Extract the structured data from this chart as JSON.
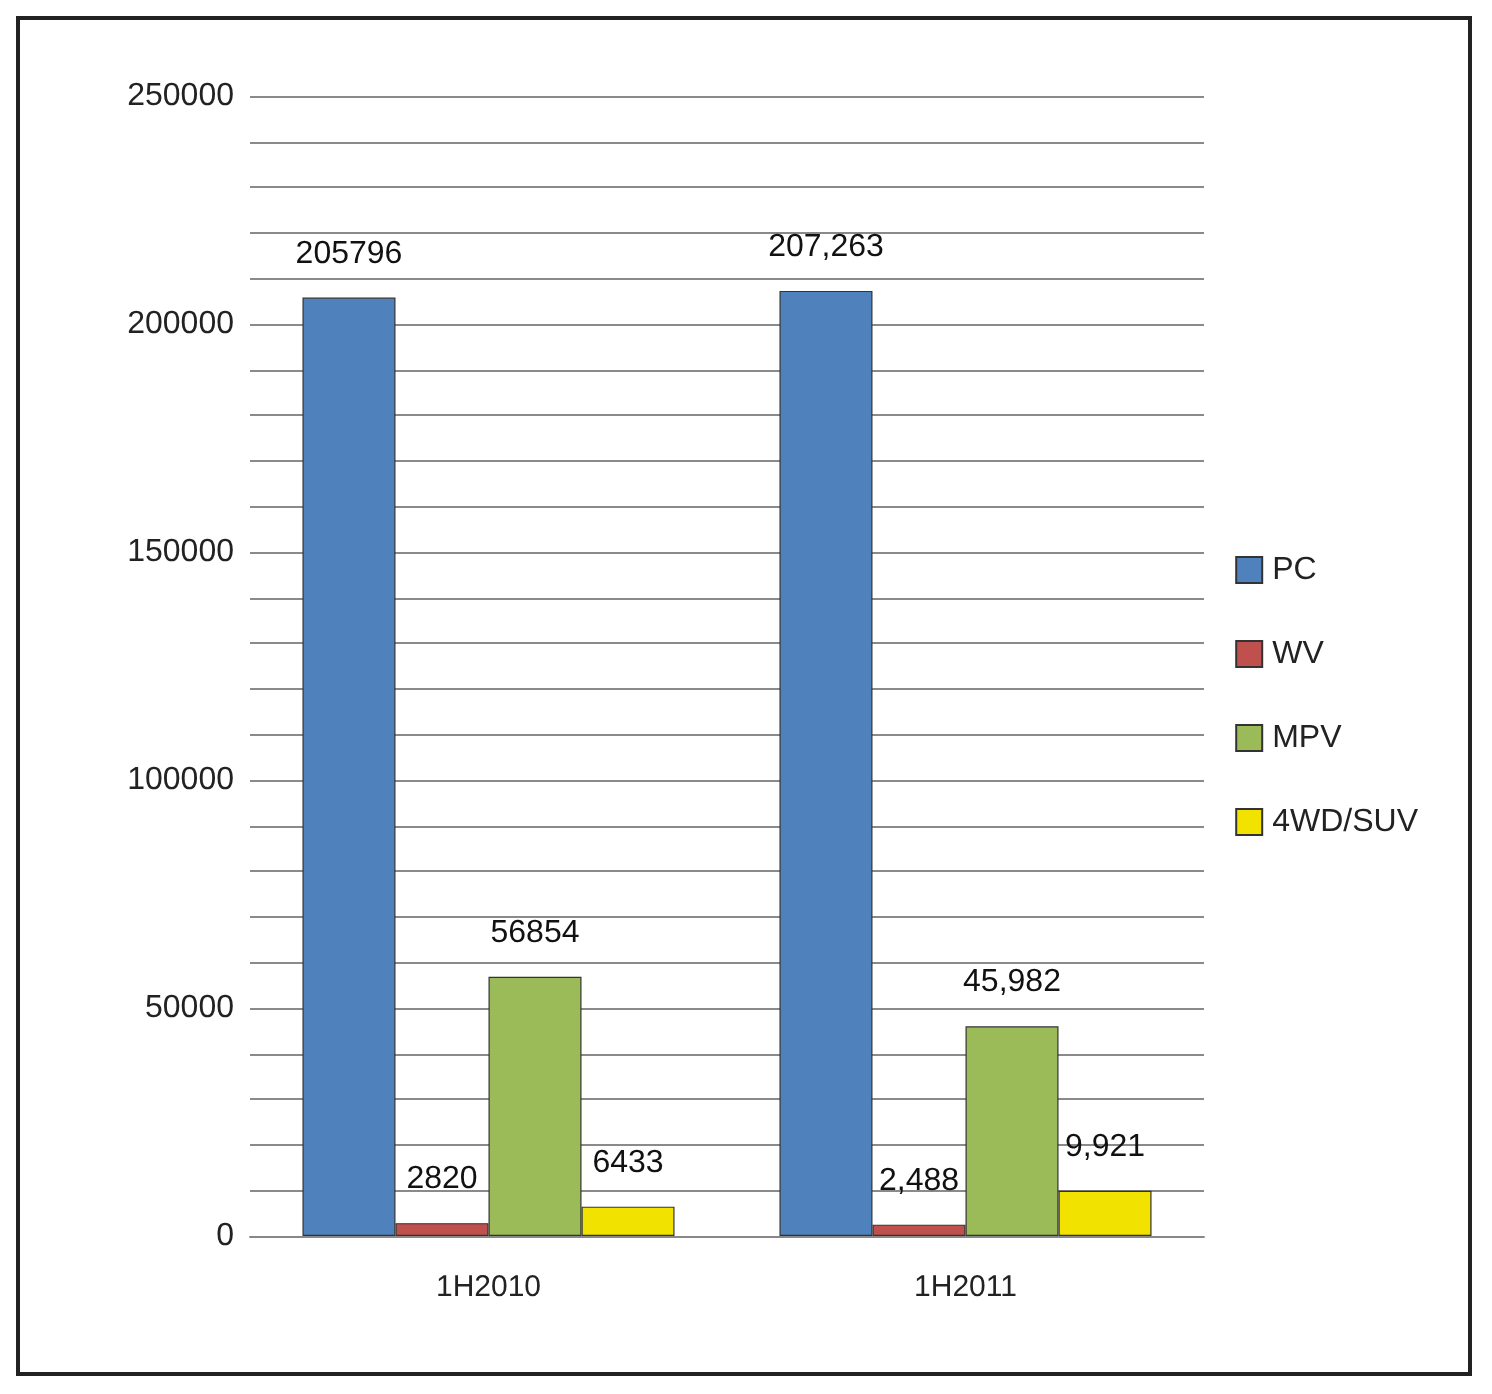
{
  "chart_data": {
    "type": "bar",
    "categories": [
      "1H2010",
      "1H2011"
    ],
    "series": [
      {
        "name": "PC",
        "color": "#4f81bd",
        "values": [
          205796,
          207263
        ],
        "value_labels": [
          "205796",
          "207,263"
        ]
      },
      {
        "name": "WV",
        "color": "#c0504d",
        "values": [
          2820,
          2488
        ],
        "value_labels": [
          "2820",
          "2,488"
        ]
      },
      {
        "name": "MPV",
        "color": "#9bbb59",
        "values": [
          56854,
          45982
        ],
        "value_labels": [
          "56854",
          "45,982"
        ]
      },
      {
        "name": "4WD/SUV",
        "color": "#f2e200",
        "values": [
          6433,
          9921
        ],
        "value_labels": [
          "6433",
          "9,921"
        ]
      }
    ],
    "ylim": [
      0,
      250000
    ],
    "yticks": [
      0,
      {
        "value": 10000,
        "label": null
      },
      {
        "value": 20000,
        "label": null
      },
      {
        "value": 30000,
        "label": null
      },
      {
        "value": 40000,
        "label": null
      },
      50000,
      {
        "value": 60000,
        "label": null
      },
      {
        "value": 70000,
        "label": null
      },
      {
        "value": 80000,
        "label": null
      },
      {
        "value": 90000,
        "label": null
      },
      100000,
      {
        "value": 110000,
        "label": null
      },
      {
        "value": 120000,
        "label": null
      },
      {
        "value": 130000,
        "label": null
      },
      {
        "value": 140000,
        "label": null
      },
      150000,
      {
        "value": 160000,
        "label": null
      },
      {
        "value": 170000,
        "label": null
      },
      {
        "value": 180000,
        "label": null
      },
      {
        "value": 190000,
        "label": null
      },
      200000,
      {
        "value": 210000,
        "label": null
      },
      {
        "value": 220000,
        "label": null
      },
      {
        "value": 230000,
        "label": null
      },
      {
        "value": 240000,
        "label": null
      },
      250000
    ],
    "grid": "y",
    "legend": "right"
  }
}
